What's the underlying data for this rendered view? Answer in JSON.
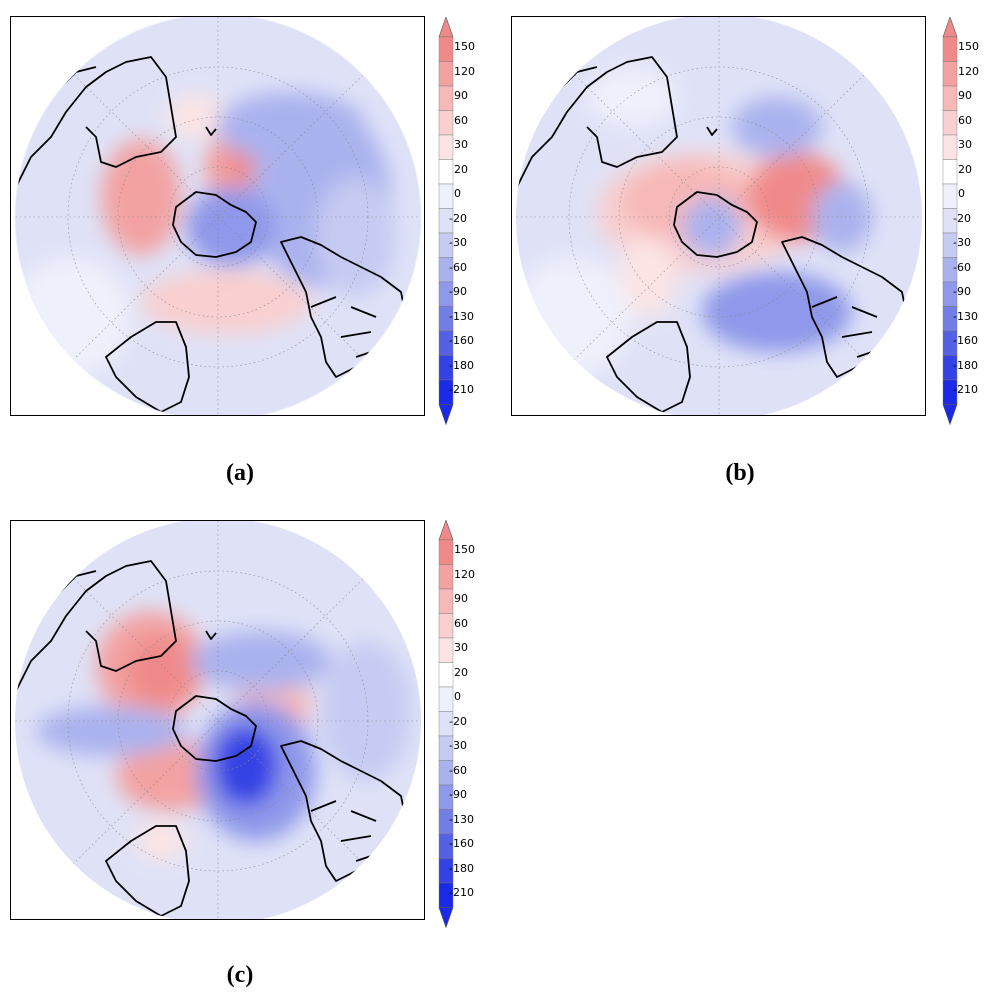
{
  "colorbar": {
    "levels": [
      "150",
      "120",
      "90",
      "60",
      "30",
      "20",
      "0",
      "-20",
      "-30",
      "-60",
      "-90",
      "-130",
      "-160",
      "-180",
      "-210"
    ],
    "colors": {
      "top_arrow": "#f08a8a",
      "reds": [
        "#f08a8a",
        "#f3a2a2",
        "#f6b8b8",
        "#f9cfcf",
        "#fce4e4"
      ],
      "neutral": [
        "#ffffff",
        "#eef0fb"
      ],
      "blues": [
        "#dfe2f7",
        "#c6cbf2",
        "#aab2ee",
        "#8f98ea",
        "#727de6",
        "#5561e4",
        "#3442e4",
        "#1a2ae6"
      ],
      "bottom_arrow": "#1a2ae6"
    }
  },
  "panels": [
    {
      "caption": "(a)"
    },
    {
      "caption": "(b)"
    },
    {
      "caption": "(c)"
    }
  ]
}
